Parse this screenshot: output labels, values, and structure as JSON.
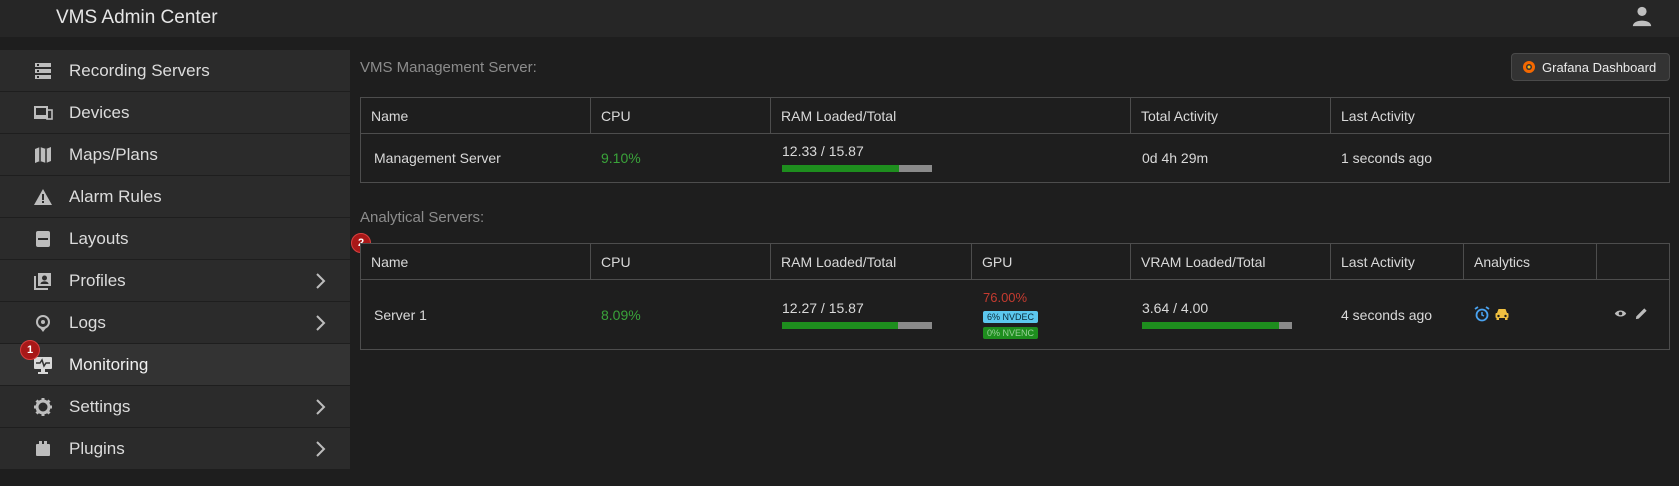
{
  "app": {
    "title": "VMS Admin Center"
  },
  "sidebar": {
    "items": [
      {
        "label": "Recording Servers",
        "icon": "server-icon"
      },
      {
        "label": "Devices",
        "icon": "devices-icon"
      },
      {
        "label": "Maps/Plans",
        "icon": "map-icon"
      },
      {
        "label": "Alarm Rules",
        "icon": "warning-icon"
      },
      {
        "label": "Layouts",
        "icon": "layout-icon"
      },
      {
        "label": "Profiles",
        "icon": "profiles-icon"
      },
      {
        "label": "Logs",
        "icon": "logs-icon"
      },
      {
        "label": "Monitoring",
        "icon": "monitor-icon"
      },
      {
        "label": "Settings",
        "icon": "gear-icon"
      },
      {
        "label": "Plugins",
        "icon": "plugin-icon"
      }
    ],
    "active": "Monitoring"
  },
  "annotations": {
    "badge1": "1",
    "badge2": "2"
  },
  "grafana_button": "Grafana Dashboard",
  "management": {
    "title": "VMS Management Server:",
    "columns": [
      "Name",
      "CPU",
      "RAM Loaded/Total",
      "Total Activity",
      "Last Activity"
    ],
    "row": {
      "name": "Management Server",
      "cpu": "9.10%",
      "ram": "12.33 / 15.87",
      "ram_fraction": 0.777,
      "total_activity": "0d 4h 29m",
      "last_activity": "1 seconds ago"
    }
  },
  "analytical": {
    "title": "Analytical Servers:",
    "columns": [
      "Name",
      "CPU",
      "RAM Loaded/Total",
      "GPU",
      "VRAM Loaded/Total",
      "Last Activity",
      "Analytics",
      ""
    ],
    "row": {
      "name": "Server 1",
      "cpu": "8.09%",
      "ram": "12.27 / 15.87",
      "ram_fraction": 0.773,
      "gpu": "76.00%",
      "nvdec": "6% NVDEC",
      "nvenc": "0% NVENC",
      "vram": "3.64 / 4.00",
      "vram_fraction": 0.91,
      "last_activity": "4 seconds ago"
    }
  },
  "colors": {
    "accent_green": "#3aa33a",
    "danger_red": "#c43b30",
    "nvdec_blue": "#5cc8ef",
    "badge_red": "#a81818"
  }
}
